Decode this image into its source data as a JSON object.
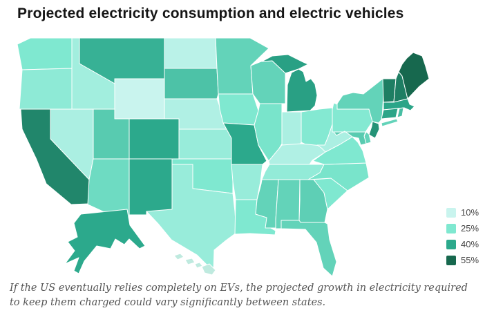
{
  "chart_data": {
    "type": "choropleth",
    "title": "Projected electricity consumption and electric vehicles",
    "caption": "If the US eventually relies completely on EVs, the projected growth in electricity required to keep them charged could vary significantly between states.",
    "legend_position": "right",
    "legend": [
      {
        "label": "10%",
        "value": 10,
        "color": "#c9f4ee"
      },
      {
        "label": "25%",
        "value": 25,
        "color": "#7fe8d0"
      },
      {
        "label": "40%",
        "value": 40,
        "color": "#2ca98c"
      },
      {
        "label": "55%",
        "value": 55,
        "color": "#17684e"
      }
    ],
    "states": [
      {
        "abbr": "WA",
        "name": "Washington",
        "value": 25
      },
      {
        "abbr": "OR",
        "name": "Oregon",
        "value": 22
      },
      {
        "abbr": "CA",
        "name": "California",
        "value": 48
      },
      {
        "abbr": "NV",
        "name": "Nevada",
        "value": 16
      },
      {
        "abbr": "ID",
        "name": "Idaho",
        "value": 18
      },
      {
        "abbr": "MT",
        "name": "Montana",
        "value": 38
      },
      {
        "abbr": "WY",
        "name": "Wyoming",
        "value": 10
      },
      {
        "abbr": "UT",
        "name": "Utah",
        "value": 32
      },
      {
        "abbr": "CO",
        "name": "Colorado",
        "value": 40
      },
      {
        "abbr": "AZ",
        "name": "Arizona",
        "value": 28
      },
      {
        "abbr": "NM",
        "name": "New Mexico",
        "value": 40
      },
      {
        "abbr": "ND",
        "name": "North Dakota",
        "value": 13
      },
      {
        "abbr": "SD",
        "name": "South Dakota",
        "value": 34
      },
      {
        "abbr": "NE",
        "name": "Nebraska",
        "value": 15
      },
      {
        "abbr": "KS",
        "name": "Kansas",
        "value": 20
      },
      {
        "abbr": "OK",
        "name": "Oklahoma",
        "value": 25
      },
      {
        "abbr": "TX",
        "name": "Texas",
        "value": 20
      },
      {
        "abbr": "MN",
        "name": "Minnesota",
        "value": 30
      },
      {
        "abbr": "IA",
        "name": "Iowa",
        "value": 25
      },
      {
        "abbr": "MO",
        "name": "Missouri",
        "value": 40
      },
      {
        "abbr": "AR",
        "name": "Arkansas",
        "value": 20
      },
      {
        "abbr": "LA",
        "name": "Louisiana",
        "value": 25
      },
      {
        "abbr": "WI",
        "name": "Wisconsin",
        "value": 30
      },
      {
        "abbr": "MI",
        "name": "Michigan",
        "value": 42
      },
      {
        "abbr": "IL",
        "name": "Illinois",
        "value": 26
      },
      {
        "abbr": "IN",
        "name": "Indiana",
        "value": 16
      },
      {
        "abbr": "OH",
        "name": "Ohio",
        "value": 24
      },
      {
        "abbr": "KY",
        "name": "Kentucky",
        "value": 15
      },
      {
        "abbr": "TN",
        "name": "Tennessee",
        "value": 21
      },
      {
        "abbr": "MS",
        "name": "Mississippi",
        "value": 30
      },
      {
        "abbr": "AL",
        "name": "Alabama",
        "value": 30
      },
      {
        "abbr": "GA",
        "name": "Georgia",
        "value": 31
      },
      {
        "abbr": "FL",
        "name": "Florida",
        "value": 30
      },
      {
        "abbr": "SC",
        "name": "South Carolina",
        "value": 25
      },
      {
        "abbr": "NC",
        "name": "North Carolina",
        "value": 26
      },
      {
        "abbr": "VA",
        "name": "Virginia",
        "value": 25
      },
      {
        "abbr": "WV",
        "name": "West Virginia",
        "value": 16
      },
      {
        "abbr": "PA",
        "name": "Pennsylvania",
        "value": 24
      },
      {
        "abbr": "NY",
        "name": "New York",
        "value": 30
      },
      {
        "abbr": "NJ",
        "name": "New Jersey",
        "value": 45
      },
      {
        "abbr": "CT",
        "name": "Connecticut",
        "value": 41
      },
      {
        "abbr": "RI",
        "name": "Rhode Island",
        "value": 35
      },
      {
        "abbr": "MA",
        "name": "Massachusetts",
        "value": 41
      },
      {
        "abbr": "VT",
        "name": "Vermont",
        "value": 50
      },
      {
        "abbr": "NH",
        "name": "New Hampshire",
        "value": 50
      },
      {
        "abbr": "ME",
        "name": "Maine",
        "value": 55
      },
      {
        "abbr": "MD",
        "name": "Maryland",
        "value": 32
      },
      {
        "abbr": "DE",
        "name": "Delaware",
        "value": 30
      },
      {
        "abbr": "AK",
        "name": "Alaska",
        "value": 40
      },
      {
        "abbr": "HI",
        "name": "Hawaii",
        "value": 42
      }
    ]
  }
}
